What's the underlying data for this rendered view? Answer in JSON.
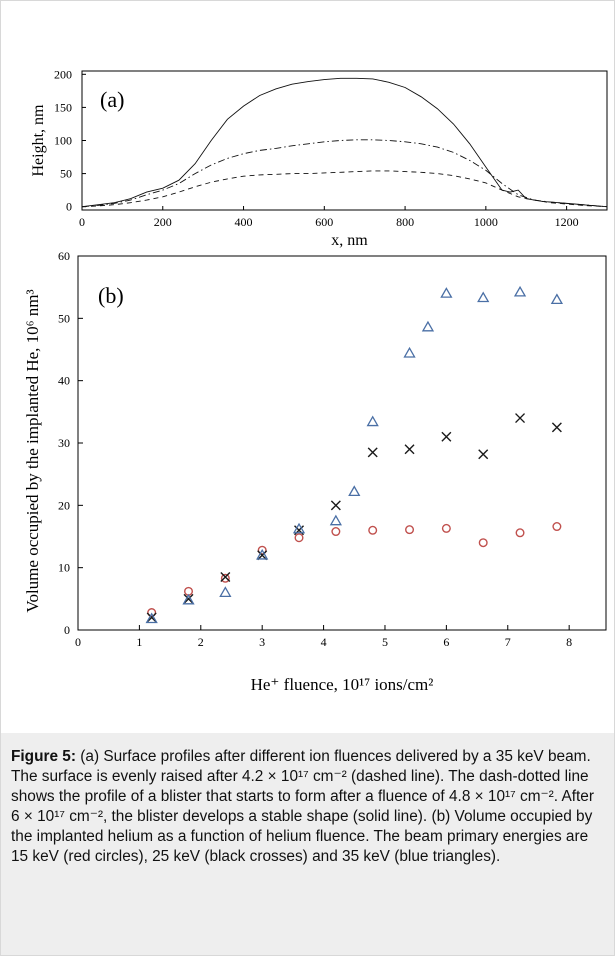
{
  "figure": {
    "caption_label": "Figure 5:",
    "caption_text": " (a) Surface profiles after different ion fluences delivered by a 35 keV beam. The surface is evenly raised after 4.2 × 10¹⁷ cm⁻² (dashed line). The dash-dotted line shows the profile of a blister that starts to form after a fluence of 4.8 × 10¹⁷ cm⁻². After 6 × 10¹⁷ cm⁻², the blister develops a stable shape (solid line). (b) Volume occupied by the implanted helium as a function of helium fluence. The beam primary energies are 15 keV (red circles), 25 keV (black crosses) and 35 keV (blue triangles)."
  },
  "chart_data": [
    {
      "type": "line",
      "panel_label": "(a)",
      "title": "",
      "xlabel": "x, nm",
      "ylabel": "Height, nm",
      "xlim": [
        0,
        1300
      ],
      "ylim": [
        -5,
        205
      ],
      "xticks": [
        0,
        200,
        400,
        600,
        800,
        1000,
        1200
      ],
      "yticks": [
        0,
        50,
        100,
        150,
        200
      ],
      "grid": false,
      "legend": "none",
      "series": [
        {
          "style": "solid",
          "x": [
            0,
            40,
            80,
            120,
            160,
            200,
            240,
            280,
            320,
            360,
            400,
            440,
            480,
            520,
            560,
            600,
            640,
            680,
            720,
            760,
            800,
            840,
            880,
            920,
            960,
            1000,
            1040,
            1060,
            1080,
            1100,
            1140,
            1180,
            1220,
            1260,
            1300
          ],
          "y": [
            0,
            3,
            6,
            12,
            22,
            28,
            40,
            65,
            100,
            132,
            152,
            168,
            178,
            185,
            189,
            192,
            194,
            194,
            193,
            188,
            180,
            166,
            148,
            125,
            95,
            60,
            25,
            22,
            25,
            12,
            8,
            6,
            4,
            2,
            0
          ]
        },
        {
          "style": "dashdot",
          "x": [
            0,
            40,
            80,
            120,
            160,
            200,
            240,
            280,
            320,
            360,
            400,
            440,
            480,
            520,
            560,
            600,
            640,
            680,
            720,
            760,
            800,
            840,
            880,
            920,
            960,
            1000,
            1040,
            1080,
            1120,
            1160,
            1200,
            1240,
            1300
          ],
          "y": [
            0,
            2,
            5,
            10,
            18,
            25,
            35,
            50,
            63,
            73,
            80,
            85,
            88,
            92,
            95,
            98,
            100,
            101,
            101,
            100,
            98,
            95,
            90,
            82,
            70,
            55,
            35,
            18,
            10,
            7,
            5,
            3,
            0
          ]
        },
        {
          "style": "dashed",
          "x": [
            0,
            40,
            80,
            120,
            160,
            200,
            240,
            280,
            320,
            360,
            400,
            440,
            480,
            520,
            560,
            600,
            640,
            680,
            720,
            760,
            800,
            840,
            880,
            920,
            960,
            1000,
            1040,
            1080,
            1120,
            1160,
            1200,
            1240,
            1300
          ],
          "y": [
            0,
            1,
            3,
            6,
            10,
            15,
            22,
            30,
            37,
            42,
            46,
            48,
            49,
            50,
            50,
            51,
            52,
            53,
            54,
            54,
            53,
            52,
            50,
            47,
            42,
            36,
            25,
            15,
            10,
            6,
            4,
            2,
            0
          ]
        }
      ]
    },
    {
      "type": "scatter",
      "panel_label": "(b)",
      "title": "",
      "xlabel": "He⁺ fluence, 10¹⁷ ions/cm²",
      "ylabel": "Volume occupied by the implanted He, 10⁶ nm³",
      "xlim": [
        0,
        8.6
      ],
      "ylim": [
        0,
        60
      ],
      "xticks": [
        0,
        1,
        2,
        3,
        4,
        5,
        6,
        7,
        8
      ],
      "yticks": [
        0,
        10,
        20,
        30,
        40,
        50,
        60
      ],
      "grid": false,
      "legend": "none",
      "series": [
        {
          "marker": "circle",
          "color": "#c0504d",
          "x": [
            1.2,
            1.8,
            2.4,
            3.0,
            3.6,
            4.2,
            4.8,
            5.4,
            6.0,
            6.6,
            7.2,
            7.8
          ],
          "y": [
            2.8,
            6.2,
            8.3,
            12.8,
            14.8,
            15.8,
            16.0,
            16.1,
            16.3,
            14.0,
            15.6,
            16.6
          ]
        },
        {
          "marker": "cross",
          "color": "#1a1a1a",
          "x": [
            1.2,
            1.8,
            2.4,
            3.0,
            3.6,
            4.2,
            4.8,
            5.4,
            6.0,
            6.6,
            7.2,
            7.8
          ],
          "y": [
            2.0,
            5.0,
            8.5,
            12.0,
            16.0,
            20.0,
            28.5,
            29.0,
            31.0,
            28.2,
            34.0,
            32.5
          ]
        },
        {
          "marker": "triangle",
          "color": "#4a6fa5",
          "x": [
            1.2,
            1.8,
            2.4,
            3.0,
            3.6,
            4.2,
            4.5,
            4.8,
            5.4,
            5.7,
            6.0,
            6.6,
            7.2,
            7.8
          ],
          "y": [
            1.8,
            4.8,
            6.0,
            12.0,
            16.2,
            17.5,
            22.2,
            33.4,
            44.4,
            48.6,
            54.0,
            53.3,
            54.2,
            53.0
          ]
        }
      ]
    }
  ]
}
